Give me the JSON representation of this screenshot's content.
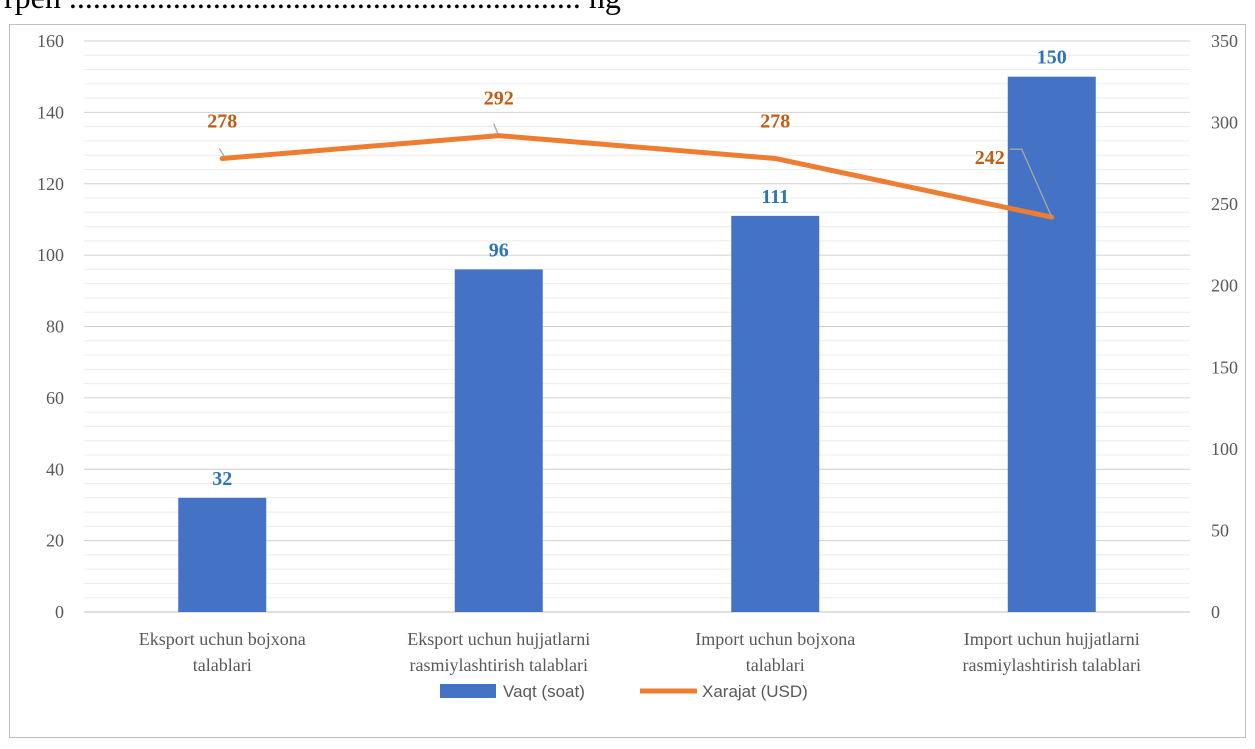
{
  "header_fragment": "rpen ................................................................ ng",
  "chart_data": {
    "type": "bar+line",
    "categories": [
      [
        "Eksport uchun bojxona",
        "talablari"
      ],
      [
        "Eksport uchun hujjatlarni",
        "rasmiylashtirish talablari"
      ],
      [
        "Import uchun bojxona",
        "talablari"
      ],
      [
        "Import uchun hujjatlarni",
        "rasmiylashtirish talablari"
      ]
    ],
    "series": [
      {
        "name": "Vaqt (soat)",
        "type": "bar",
        "axis": "left",
        "color": "#4472c4",
        "label_color": "#2e75b6",
        "values": [
          32,
          96,
          111,
          150
        ]
      },
      {
        "name": "Xarajat (USD)",
        "type": "line",
        "axis": "right",
        "color": "#ed7d31",
        "label_color": "#c55a11",
        "values": [
          278,
          292,
          278,
          242
        ]
      }
    ],
    "y_left": {
      "min": 0,
      "max": 160,
      "major_step": 20,
      "minor_step": 4,
      "ticks": [
        "0",
        "20",
        "40",
        "60",
        "80",
        "100",
        "120",
        "140",
        "160"
      ]
    },
    "y_right": {
      "min": 0,
      "max": 350,
      "major_step": 50,
      "ticks": [
        "0",
        "50",
        "100",
        "150",
        "200",
        "250",
        "300",
        "350"
      ]
    },
    "grid": true,
    "legend_position": "bottom"
  }
}
